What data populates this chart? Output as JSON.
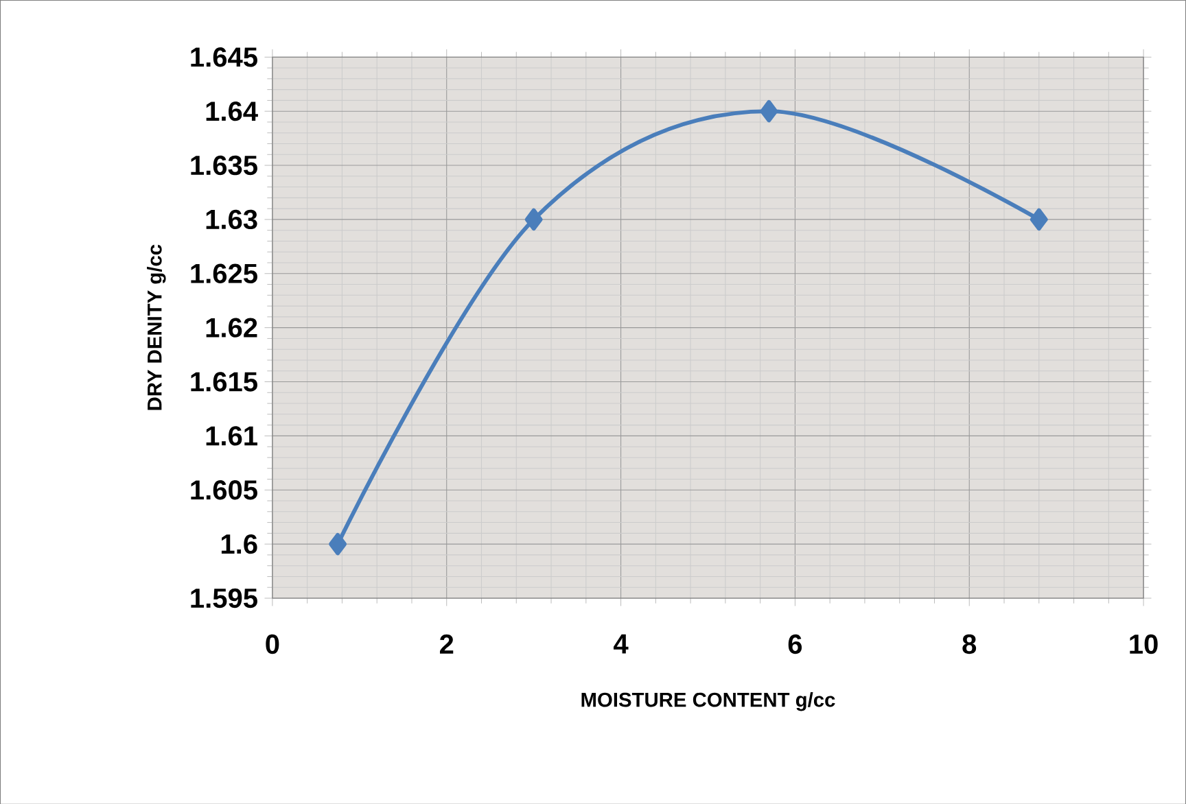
{
  "chart_data": {
    "type": "line",
    "xlabel": "MOISTURE CONTENT g/cc",
    "ylabel": "DRY DENITY g/cc",
    "x": [
      0.75,
      3,
      5.7,
      8.8
    ],
    "series": [
      {
        "color": "#4a7ebb",
        "values": [
          1.6,
          1.63,
          1.64,
          1.63
        ]
      }
    ],
    "xlim": [
      0,
      10
    ],
    "xticks": [
      0,
      2,
      4,
      6,
      8,
      10
    ],
    "ylim": [
      1.595,
      1.645
    ],
    "yticks": [
      1.595,
      1.6,
      1.605,
      1.61,
      1.615,
      1.62,
      1.625,
      1.63,
      1.635,
      1.64,
      1.645
    ],
    "grid": true,
    "marker": "diamond",
    "line_style": "solid"
  }
}
